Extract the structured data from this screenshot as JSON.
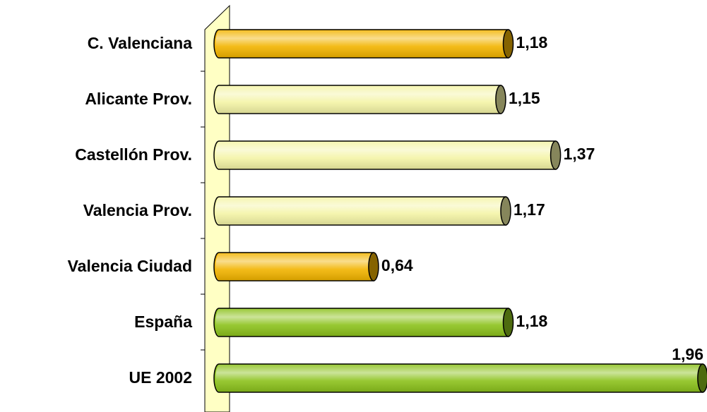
{
  "chart_data": {
    "type": "bar",
    "orientation": "horizontal",
    "categories": [
      "C. Valenciana",
      "Alicante Prov.",
      "Castellón Prov.",
      "Valencia Prov.",
      "Valencia Ciudad",
      "España",
      "UE 2002"
    ],
    "values": [
      1.18,
      1.15,
      1.37,
      1.17,
      0.64,
      1.18,
      1.96
    ],
    "value_labels": [
      "1,18",
      "1,15",
      "1,37",
      "1,17",
      "0,64",
      "1,18",
      "1,96"
    ],
    "colors": [
      "#f2b400",
      "#f4f4a6",
      "#f4f4a6",
      "#f4f4a6",
      "#f2b400",
      "#8cc21c",
      "#8cc21c"
    ]
  }
}
